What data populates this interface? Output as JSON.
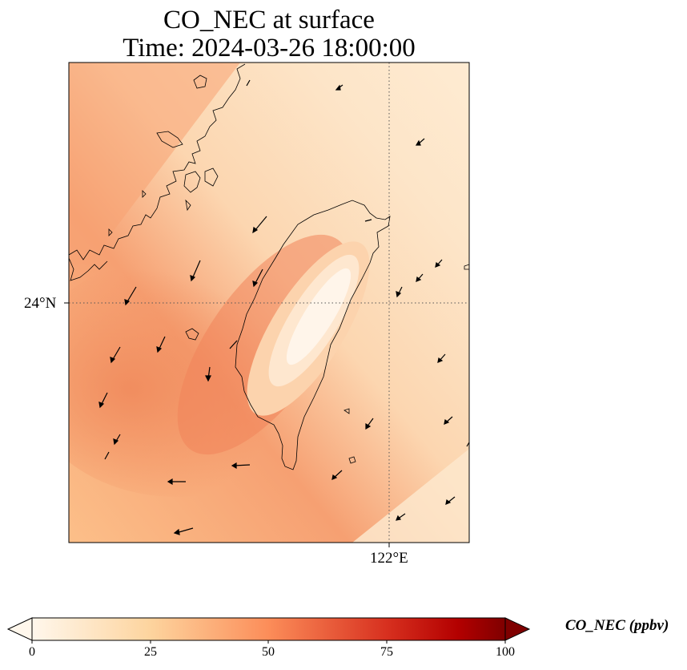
{
  "title": {
    "line1": "CO_NEC at surface",
    "line2": "Time: 2024-03-26 18:00:00"
  },
  "map": {
    "lat_label": "24°N",
    "lon_label": "122°E",
    "gridlines": "dotted",
    "coastline_color": "#000000",
    "wind_arrow_color": "#000000"
  },
  "colorbar": {
    "label": "CO_NEC (ppbv)",
    "ticks": [
      "0",
      "25",
      "50",
      "75",
      "100"
    ],
    "colormap": "OrRd",
    "stops": [
      "#fff7ec",
      "#fdd49e",
      "#fc8d59",
      "#d7301f",
      "#7f0000"
    ],
    "extend": "both"
  }
}
